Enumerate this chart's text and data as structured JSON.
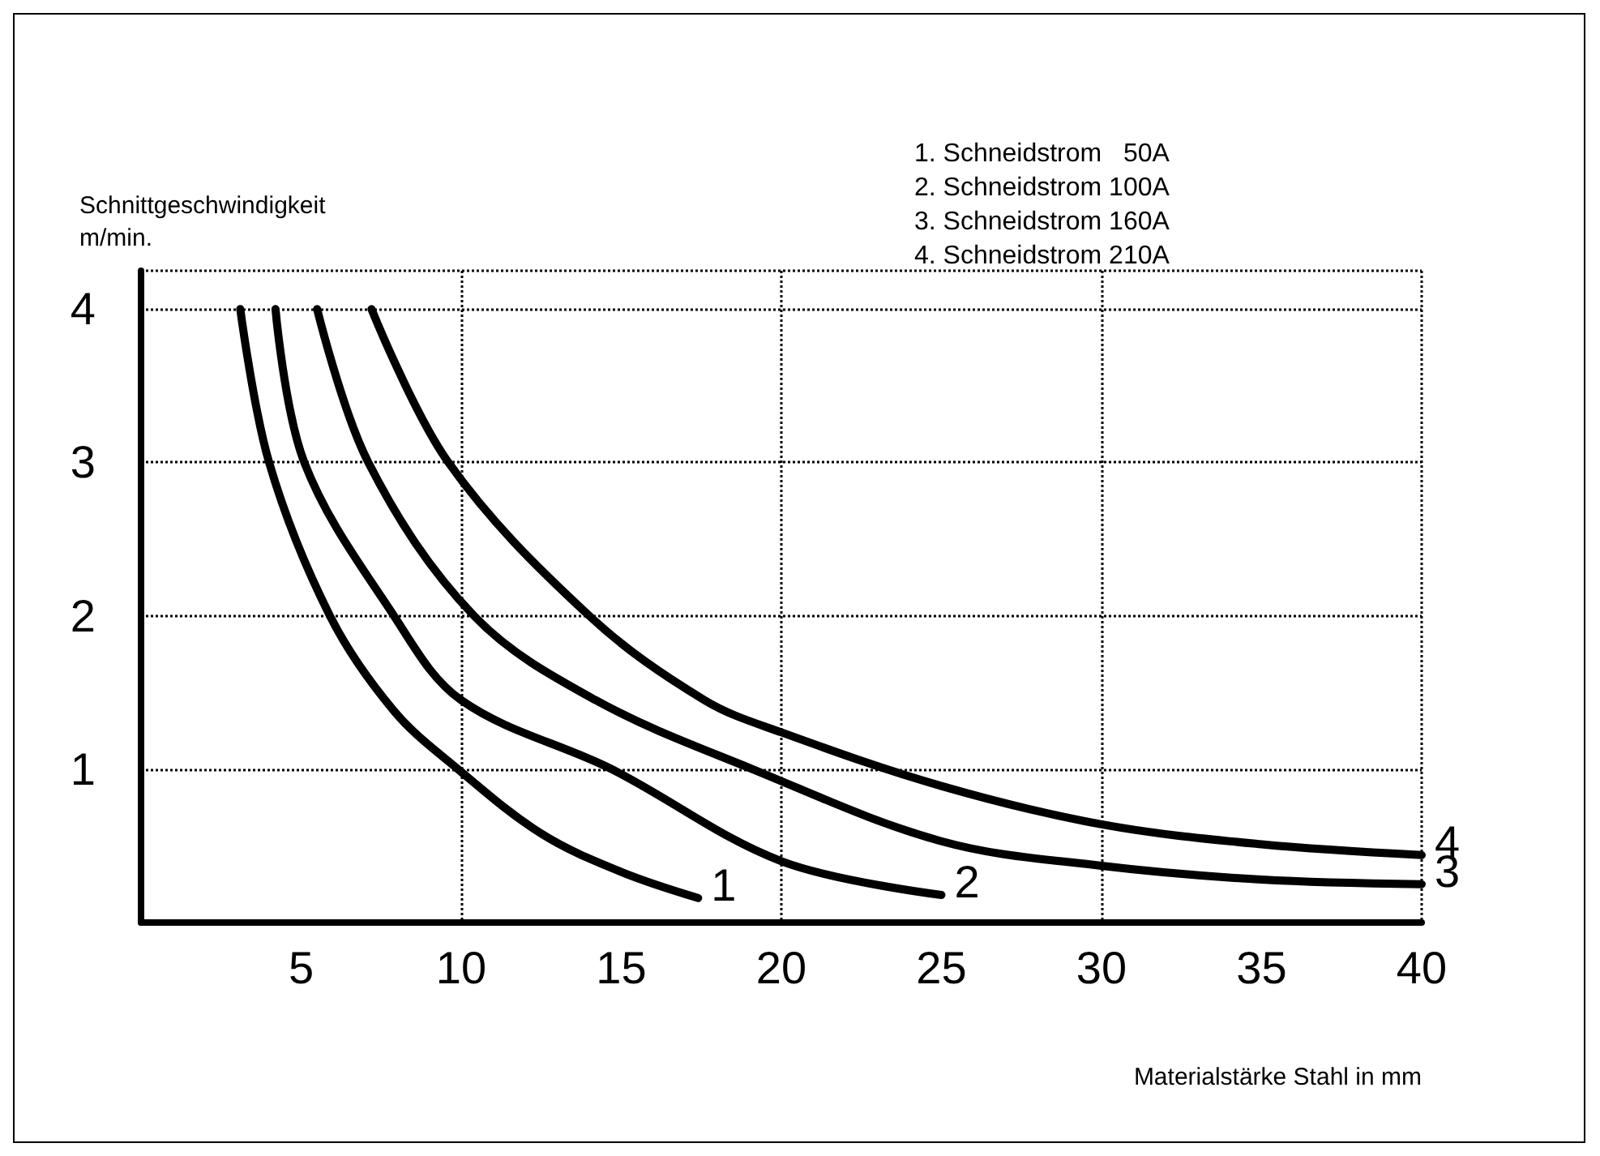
{
  "chart_data": {
    "type": "line",
    "ylabel": "Schnittgeschwindigkeit m/min.",
    "xlabel": "Materialstärke Stahl in mm",
    "xlim": [
      0,
      40
    ],
    "xticks": [
      5,
      10,
      15,
      20,
      25,
      30,
      35,
      40
    ],
    "ylim": [
      0,
      4.25
    ],
    "yticks": [
      1,
      2,
      3,
      4
    ],
    "grid": true,
    "legend": false,
    "marker": "none",
    "line_style": "solid",
    "annotations": [
      "1. Schneidstrom   50A",
      "2. Schneidstrom 100A",
      "3. Schneidstrom 160A",
      "4. Schneidstrom 210A"
    ],
    "series": [
      {
        "name": "1",
        "color": "#000000",
        "x": [
          3.1,
          4.0,
          5.9,
          7.9,
          9.9,
          12.5,
          15.0,
          17.4
        ],
        "values": [
          4.0,
          3.0,
          2.0,
          1.38,
          1.0,
          0.58,
          0.33,
          0.16
        ]
      },
      {
        "name": "2",
        "color": "#000000",
        "x": [
          4.2,
          5.1,
          7.9,
          10.0,
          14.7,
          20.0,
          25.0
        ],
        "values": [
          4.0,
          3.0,
          2.0,
          1.45,
          1.0,
          0.4,
          0.18
        ]
      },
      {
        "name": "3",
        "color": "#000000",
        "x": [
          5.5,
          7.1,
          10.4,
          14.2,
          19.1,
          25.0,
          30.0,
          35.0,
          40.0
        ],
        "values": [
          4.0,
          3.0,
          2.0,
          1.45,
          1.0,
          0.53,
          0.37,
          0.28,
          0.25
        ]
      },
      {
        "name": "4",
        "color": "#000000",
        "x": [
          7.2,
          9.6,
          14.0,
          17.6,
          20.0,
          25.0,
          30.0,
          35.0,
          40.0
        ],
        "values": [
          4.0,
          3.0,
          2.0,
          1.45,
          1.24,
          0.89,
          0.64,
          0.51,
          0.44
        ]
      }
    ]
  }
}
